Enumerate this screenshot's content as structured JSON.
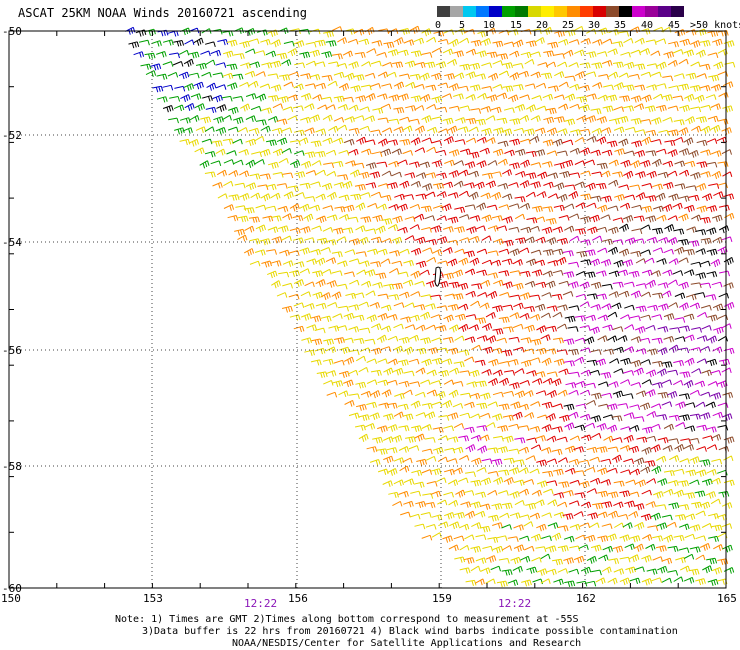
{
  "title": "ASCAT 25KM NOAA Winds 20160721 ascending",
  "scale": {
    "colors": [
      "#3f3f3f",
      "#a6a6a6",
      "#00c8f0",
      "#0078ff",
      "#0000c8",
      "#00a000",
      "#007a00",
      "#d8d800",
      "#ffee00",
      "#ffc800",
      "#ff8c00",
      "#ff3c00",
      "#d80000",
      "#8c4a2a",
      "#000000",
      "#cc00cc",
      "#990099",
      "#5a0088",
      "#2a004a"
    ],
    "labels": [
      "0",
      "5",
      "10",
      "15",
      "20",
      "25",
      "30",
      "35",
      "40",
      "45",
      ">50 knots"
    ]
  },
  "axes": {
    "lat_labels": [
      "-50",
      "-52",
      "-54",
      "-56",
      "-58",
      "-60"
    ],
    "lon_labels": [
      "150",
      "153",
      "156",
      "159",
      "162",
      "165"
    ]
  },
  "times": [
    "12:22",
    "12:22"
  ],
  "notes": [
    "Note: 1) Times are GMT 2)Times along bottom correspond to measurement at -55S",
    "3)Data buffer is 22 hrs from 20160721 4) Black wind barbs indicate possible contamination",
    "NOAA/NESDIS/Center for Satellite Applications and Research"
  ],
  "legend_colors": {
    "gray": "#a6a6a6",
    "cyan": "#00c8f0",
    "blue": "#0000c8",
    "green": "#00a000",
    "yellow": "#e8d800",
    "orange": "#ff8c00",
    "red": "#e00000",
    "brown": "#8c4a2a",
    "black": "#000000",
    "magenta": "#cc00cc",
    "purple": "#7a00aa"
  }
}
